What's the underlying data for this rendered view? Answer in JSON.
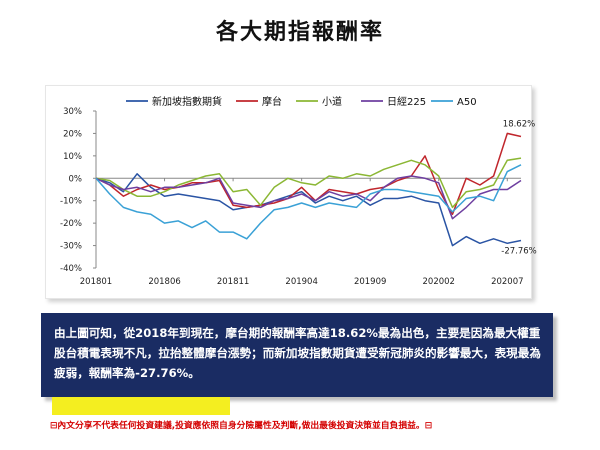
{
  "page": {
    "title": "各大期指報酬率",
    "note": "由上圖可知，從2018年到現在，摩台期的報酬率高達18.62%最為出色，主要是因為最大權重股台積電表現不凡，拉抬整體摩台漲勢；而新加坡指數期貨遭受新冠肺炎的影響最大，表現最為疲弱，報酬率為-27.76%。",
    "disclaimer": "內文分享不代表任何投資建議,投資應依照自身分險屬性及判斷,做出最後投資決策並自負損益。",
    "disclaimer_marker": "⊟"
  },
  "chart_data": {
    "type": "line",
    "title": "",
    "xlabel": "",
    "ylabel": "",
    "ylim": [
      -40,
      30
    ],
    "yticks": [
      30,
      20,
      10,
      0,
      -10,
      -20,
      -30,
      -40
    ],
    "ytick_labels": [
      "30%",
      "20%",
      "10%",
      "0%",
      "-10%",
      "-20%",
      "-30%",
      "-40%"
    ],
    "x_tick_labels": [
      "201801",
      "201806",
      "201811",
      "201904",
      "201909",
      "202002",
      "202007"
    ],
    "x": [
      "201801",
      "201802",
      "201803",
      "201804",
      "201805",
      "201806",
      "201807",
      "201808",
      "201809",
      "201810",
      "201811",
      "201812",
      "201901",
      "201902",
      "201903",
      "201904",
      "201905",
      "201906",
      "201907",
      "201908",
      "201909",
      "201910",
      "201911",
      "201912",
      "202001",
      "202002",
      "202003",
      "202004",
      "202005",
      "202006",
      "202007",
      "202008"
    ],
    "grid": false,
    "legend_position": "top",
    "series": [
      {
        "name": "新加坡指數期貨",
        "color": "#2a54a4",
        "values": [
          0,
          -2,
          -6,
          2,
          -4,
          -8,
          -7,
          -8,
          -9,
          -10,
          -14,
          -13,
          -12,
          -10,
          -8,
          -6,
          -11,
          -8,
          -10,
          -8,
          -12,
          -9,
          -9,
          -8,
          -10,
          -11,
          -30,
          -26,
          -29,
          -27,
          -29,
          -27.76
        ]
      },
      {
        "name": "摩台",
        "color": "#c0262c",
        "values": [
          0,
          -3,
          -8,
          -5,
          -3,
          -5,
          -4,
          -2,
          -2,
          -1,
          -12,
          -13,
          -12,
          -11,
          -9,
          -4,
          -10,
          -5,
          -6,
          -7,
          -5,
          -4,
          -1,
          1,
          10,
          -5,
          -16,
          0,
          -3,
          1,
          20,
          18.62
        ]
      },
      {
        "name": "小道",
        "color": "#8bb734",
        "values": [
          0,
          -1,
          -5,
          -8,
          -8,
          -6,
          -3,
          -1,
          1,
          2,
          -6,
          -5,
          -12,
          -4,
          0,
          -2,
          -3,
          1,
          0,
          2,
          1,
          4,
          6,
          8,
          6,
          1,
          -13,
          -6,
          -5,
          -3,
          8,
          9
        ]
      },
      {
        "name": "日經225",
        "color": "#6e3fa0",
        "values": [
          0,
          -3,
          -5,
          -4,
          -6,
          -4,
          -4,
          -3,
          -2,
          0,
          -11,
          -12,
          -13,
          -10,
          -9,
          -7,
          -10,
          -6,
          -8,
          -7,
          -10,
          -4,
          0,
          1,
          0,
          -2,
          -18,
          -13,
          -7,
          -5,
          -5,
          -1
        ]
      },
      {
        "name": "A50",
        "color": "#3aa1d6",
        "values": [
          0,
          -7,
          -13,
          -15,
          -16,
          -20,
          -19,
          -22,
          -19,
          -24,
          -24,
          -27,
          -20,
          -14,
          -13,
          -11,
          -13,
          -11,
          -12,
          -13,
          -7,
          -5,
          -5,
          -6,
          -7,
          -8,
          -15,
          -9,
          -8,
          -10,
          3,
          6
        ]
      }
    ],
    "annotations": [
      {
        "text": "18.62%",
        "series": "摩台",
        "x": "202008",
        "y": 18.62
      },
      {
        "text": "-27.76%",
        "series": "新加坡指數期貨",
        "x": "202008",
        "y": -27.76
      }
    ]
  }
}
